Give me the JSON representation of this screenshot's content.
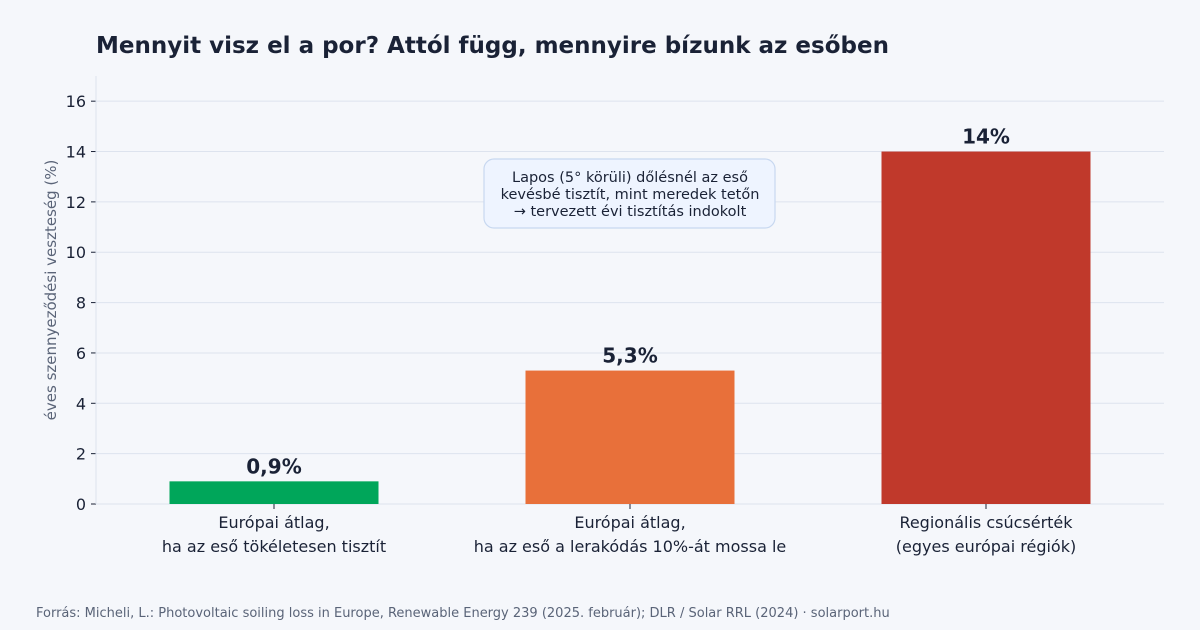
{
  "chart_data": {
    "type": "bar",
    "title": "Mennyit visz el a por? Attól függ, mennyire bízunk az esőben",
    "ylabel": "éves szennyeződési veszteség (%)",
    "xlabel": "",
    "ylim": [
      0,
      17
    ],
    "yticks": [
      0,
      2,
      4,
      6,
      8,
      10,
      12,
      14,
      16
    ],
    "grid": true,
    "categories": [
      [
        "Európai átlag,",
        "ha az eső tökéletesen tisztít"
      ],
      [
        "Európai átlag,",
        "ha az eső a lerakódás 10%-át mossa le"
      ],
      [
        "Regionális csúcsérték",
        "(egyes európai régiók)"
      ]
    ],
    "values": [
      0.9,
      5.3,
      14
    ],
    "value_labels": [
      "0,9%",
      "5,3%",
      "14%"
    ],
    "colors": [
      "#00a65a",
      "#e8703a",
      "#c0392b"
    ],
    "annotation": {
      "lines": [
        "Lapos (5° körüli) dőlésnél az eső",
        "kevésbé tisztít, mint meredek tetőn",
        "→ tervezett évi tisztítás indokolt"
      ]
    },
    "source": "Forrás: Micheli, L.: Photovoltaic soiling loss in Europe, Renewable Energy 239 (2025. február); DLR / Solar RRL (2024) · solarport.hu"
  },
  "colors": {
    "background": "#f5f7fb",
    "grid": "#dde3ee",
    "text": "#1a2236",
    "muted": "#5a6478",
    "annotation_bg": "#eef4ff",
    "annotation_border": "#c8d8f0"
  }
}
